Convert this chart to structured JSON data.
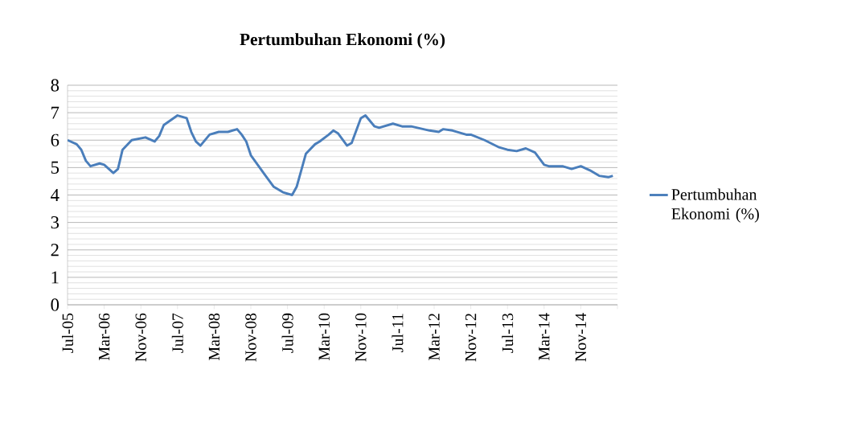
{
  "chart_data": {
    "type": "line",
    "title": "Pertumbuhan Ekonomi (%)",
    "x": [
      "2005-07",
      "2005-09",
      "2005-10",
      "2005-11",
      "2005-12",
      "2006-02",
      "2006-03",
      "2006-05",
      "2006-06",
      "2006-07",
      "2006-09",
      "2006-12",
      "2007-02",
      "2007-03",
      "2007-04",
      "2007-07",
      "2007-09",
      "2007-10",
      "2007-11",
      "2007-12",
      "2008-02",
      "2008-04",
      "2008-06",
      "2008-08",
      "2008-09",
      "2008-10",
      "2008-11",
      "2009-02",
      "2009-04",
      "2009-06",
      "2009-08",
      "2009-09",
      "2009-10",
      "2009-11",
      "2010-01",
      "2010-02",
      "2010-04",
      "2010-05",
      "2010-06",
      "2010-08",
      "2010-09",
      "2010-11",
      "2010-12",
      "2011-02",
      "2011-03",
      "2011-06",
      "2011-08",
      "2011-10",
      "2012-02",
      "2012-04",
      "2012-05",
      "2012-07",
      "2012-10",
      "2012-11",
      "2013-02",
      "2013-05",
      "2013-07",
      "2013-09",
      "2013-11",
      "2014-01",
      "2014-03",
      "2014-04",
      "2014-07",
      "2014-09",
      "2014-11",
      "2015-01",
      "2015-03",
      "2015-05",
      "2015-06"
    ],
    "series": [
      {
        "name": "Pertumbuhan Ekonomi (%)",
        "color": "#4a7ebb",
        "values": [
          6.0,
          5.85,
          5.65,
          5.25,
          5.05,
          5.15,
          5.1,
          4.8,
          4.95,
          5.65,
          6.0,
          6.1,
          5.95,
          6.15,
          6.55,
          6.9,
          6.8,
          6.3,
          5.95,
          5.8,
          6.2,
          6.3,
          6.3,
          6.4,
          6.2,
          5.95,
          5.45,
          4.75,
          4.3,
          4.1,
          4.0,
          4.3,
          4.9,
          5.5,
          5.85,
          5.95,
          6.2,
          6.35,
          6.25,
          5.8,
          5.9,
          6.8,
          6.9,
          6.5,
          6.45,
          6.6,
          6.5,
          6.5,
          6.35,
          6.3,
          6.4,
          6.35,
          6.2,
          6.2,
          6.0,
          5.75,
          5.65,
          5.6,
          5.7,
          5.55,
          5.1,
          5.05,
          5.05,
          4.95,
          5.05,
          4.9,
          4.7,
          4.65,
          4.7
        ]
      }
    ],
    "xlim": [
      "2005-07",
      "2015-07"
    ],
    "xticks": [
      {
        "value": "2005-07",
        "label": "Jul-05"
      },
      {
        "value": "2006-03",
        "label": "Mar-06"
      },
      {
        "value": "2006-11",
        "label": "Nov-06"
      },
      {
        "value": "2007-07",
        "label": "Jul-07"
      },
      {
        "value": "2008-03",
        "label": "Mar-08"
      },
      {
        "value": "2008-11",
        "label": "Nov-08"
      },
      {
        "value": "2009-07",
        "label": "Jul-09"
      },
      {
        "value": "2010-03",
        "label": "Mar-10"
      },
      {
        "value": "2010-11",
        "label": "Nov-10"
      },
      {
        "value": "2011-07",
        "label": "Jul-11"
      },
      {
        "value": "2012-03",
        "label": "Mar-12"
      },
      {
        "value": "2012-11",
        "label": "Nov-12"
      },
      {
        "value": "2013-07",
        "label": "Jul-13"
      },
      {
        "value": "2014-03",
        "label": "Mar-14"
      },
      {
        "value": "2014-11",
        "label": "Nov-14"
      },
      {
        "value": "2015-07",
        "label": null
      }
    ],
    "ylim": [
      0,
      8
    ],
    "yticks": [
      0,
      1,
      2,
      3,
      4,
      5,
      6,
      7,
      8
    ],
    "grid": "y",
    "legend": "right"
  }
}
